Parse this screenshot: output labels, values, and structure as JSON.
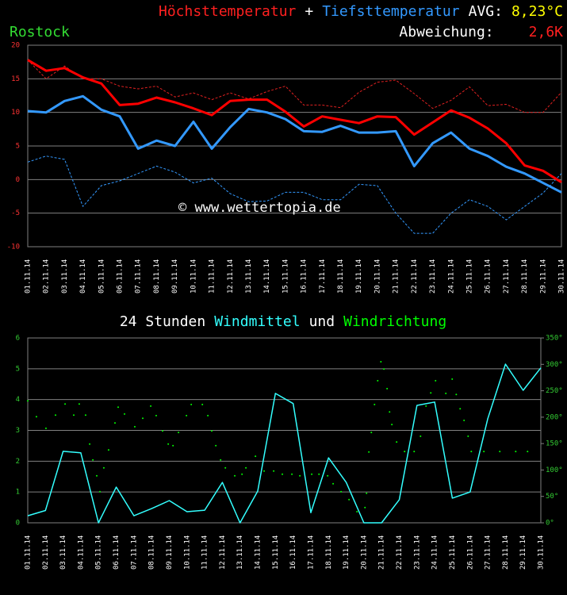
{
  "chart_data": [
    {
      "type": "line",
      "title_parts": [
        {
          "text": "Höchsttemperatur",
          "color": "#ff2020"
        },
        {
          "text": "+",
          "color": "#ffffff"
        },
        {
          "text": "Tiefsttemperatur",
          "color": "#3399ff"
        },
        {
          "text": "AVG:",
          "color": "#ffffff"
        },
        {
          "text": "8,23°C",
          "color": "#ffff00"
        }
      ],
      "station": "Rostock",
      "station_color": "#33dd33",
      "deviation_label": "Abweichung:",
      "deviation": "2,6K",
      "deviation_color": "#ff2020",
      "watermark": "© www.wettertopia.de",
      "categories": [
        "01.11.14",
        "02.11.14",
        "03.11.14",
        "04.11.14",
        "05.11.14",
        "06.11.14",
        "07.11.14",
        "08.11.14",
        "09.11.14",
        "10.11.14",
        "11.11.14",
        "12.11.14",
        "13.11.14",
        "14.11.14",
        "15.11.14",
        "16.11.14",
        "17.11.14",
        "18.11.14",
        "19.11.14",
        "20.11.14",
        "21.11.14",
        "22.11.14",
        "23.11.14",
        "24.11.14",
        "25.11.14",
        "26.11.14",
        "27.11.14",
        "28.11.14",
        "29.11.14",
        "30.11.14"
      ],
      "ylim": [
        -10,
        20
      ],
      "yticks": [
        -10,
        -5,
        0,
        5,
        10,
        15,
        20
      ],
      "grid": true,
      "tick_color": "#ff3333",
      "series": [
        {
          "color": "#e02020",
          "dash": true,
          "width": 1,
          "values": [
            17.8,
            15,
            16.9,
            15,
            15,
            13.9,
            13.5,
            13.9,
            12.3,
            12.9,
            11.9,
            12.9,
            12,
            13.1,
            13.9,
            11.1,
            11.1,
            10.7,
            13,
            14.5,
            14.8,
            12.8,
            10.6,
            11.8,
            13.8,
            11,
            11.2,
            10,
            10,
            13
          ]
        },
        {
          "color": "#3399ff",
          "dash": true,
          "width": 1,
          "values": [
            2.6,
            3.5,
            3,
            -4,
            -0.9,
            -0.2,
            0.9,
            2,
            1.1,
            -0.5,
            0.2,
            -2.1,
            -3.3,
            -3.2,
            -1.9,
            -1.9,
            -3,
            -3,
            -0.7,
            -0.9,
            -5,
            -8,
            -8,
            -5,
            -3,
            -4,
            -6,
            -4,
            -2,
            0.9
          ]
        },
        {
          "color": "#ff0000",
          "dash": false,
          "width": 3,
          "values": [
            17.8,
            16.2,
            16.6,
            15.2,
            14.3,
            11.1,
            11.3,
            12.2,
            11.5,
            10.6,
            9.6,
            11.7,
            11.9,
            11.9,
            10.1,
            7.9,
            9.4,
            8.9,
            8.4,
            9.4,
            9.3,
            6.7,
            8.5,
            10.3,
            9.2,
            7.6,
            5.4,
            2.1,
            1.3,
            -0.4
          ]
        },
        {
          "color": "#3399ff",
          "dash": false,
          "width": 3,
          "values": [
            10.2,
            10,
            11.7,
            12.4,
            10.4,
            9.4,
            4.6,
            5.8,
            5,
            8.6,
            4.6,
            7.8,
            10.5,
            10,
            9,
            7.2,
            7.1,
            8,
            7,
            7,
            7.2,
            2,
            5.4,
            7,
            4.6,
            3.5,
            1.9,
            0.9,
            -0.5,
            -1.9
          ]
        }
      ]
    },
    {
      "type": "line",
      "title_parts": [
        {
          "text": "24 Stunden",
          "color": "#ffffff"
        },
        {
          "text": "Windmittel",
          "color": "#33ffff"
        },
        {
          "text": "und",
          "color": "#ffffff"
        },
        {
          "text": "Windrichtung",
          "color": "#00ff00"
        }
      ],
      "categories": [
        "01.11.14",
        "02.11.14",
        "03.11.14",
        "04.11.14",
        "05.11.14",
        "06.11.14",
        "07.11.14",
        "08.11.14",
        "09.11.14",
        "10.11.14",
        "11.11.14",
        "12.11.14",
        "13.11.14",
        "14.11.14",
        "15.11.14",
        "16.11.14",
        "17.11.14",
        "18.11.14",
        "19.11.14",
        "20.11.14",
        "21.11.14",
        "22.11.14",
        "23.11.14",
        "24.11.14",
        "25.11.14",
        "26.11.14",
        "27.11.14",
        "28.11.14",
        "29.11.14",
        "30.11.14"
      ],
      "ylim": [
        0,
        6
      ],
      "yticks": [
        0,
        1,
        2,
        3,
        4,
        5,
        6
      ],
      "grid": true,
      "tick_color": "#33cc33",
      "y2lim": [
        0,
        350
      ],
      "y2ticks": [
        {
          "value": 0,
          "label": "0°"
        },
        {
          "value": 50,
          "label": "50°"
        },
        {
          "value": 100,
          "label": "100°"
        },
        {
          "value": 150,
          "label": "150°"
        },
        {
          "value": 200,
          "label": "200°"
        },
        {
          "value": 250,
          "label": "250°"
        },
        {
          "value": 300,
          "label": "300°"
        },
        {
          "value": 350,
          "label": "350°"
        }
      ],
      "series": [
        {
          "color": "#33ffff",
          "dash": false,
          "width": 1.5,
          "values": [
            0.23,
            0.4,
            2.32,
            2.27,
            0,
            1.16,
            0.23,
            0.46,
            0.72,
            0.36,
            0.41,
            1.31,
            0,
            1.03,
            4.2,
            3.87,
            0.33,
            2.11,
            1.31,
            0,
            0,
            0.75,
            3.81,
            3.92,
            0.8,
            1,
            3.38,
            5.15,
            4.3,
            5.03
          ]
        },
        {
          "type": "scatter",
          "axis": "y2",
          "color": "#00ff00",
          "x": [
            1,
            1.49,
            2.03,
            2.57,
            3.11,
            3.6,
            3.91,
            4.27,
            4.5,
            4.68,
            4.9,
            5.08,
            5.3,
            5.57,
            5.93,
            6.11,
            6.47,
            7.05,
            7.5,
            7.95,
            8.26,
            8.62,
            8.94,
            9.21,
            9.52,
            9.97,
            10.24,
            10.87,
            11.18,
            11.4,
            11.63,
            11.9,
            12.17,
            12.7,
            13.11,
            13.33,
            13.87,
            14.36,
            14.9,
            15.39,
            15.93,
            16.38,
            17.05,
            17.46,
            17.95,
            18.26,
            18.71,
            19.16,
            19.61,
            20.06,
            20.15,
            20.28,
            20.42,
            20.6,
            20.78,
            20.96,
            21.13,
            21.31,
            21.45,
            21.58,
            21.85,
            22.3,
            22.84,
            23.2,
            23.51,
            23.78,
            24.05,
            24.63,
            24.99,
            25.22,
            25.44,
            25.66,
            25.89,
            26.07,
            26.78,
            27.68,
            28.58,
            29.25
          ],
          "values": [
            231,
            201,
            179,
            204,
            225,
            204,
            225,
            204,
            149,
            119,
            89,
            59,
            104,
            138,
            189,
            219,
            206,
            182,
            198,
            221,
            203,
            174,
            149,
            146,
            171,
            203,
            224,
            224,
            203,
            174,
            146,
            119,
            104,
            89,
            92,
            104,
            126,
            98,
            98,
            92,
            92,
            89,
            92,
            92,
            89,
            74,
            59,
            44,
            21,
            29,
            56,
            134,
            171,
            224,
            269,
            305,
            291,
            254,
            210,
            186,
            153,
            135,
            135,
            164,
            221,
            246,
            269,
            245,
            272,
            243,
            216,
            194,
            164,
            135,
            135,
            135,
            135,
            135
          ]
        }
      ]
    }
  ]
}
